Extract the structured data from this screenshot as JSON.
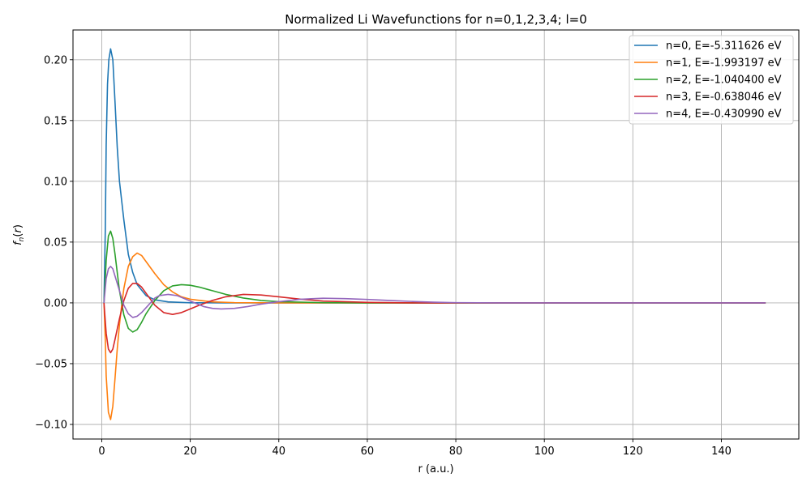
{
  "chart_data": {
    "type": "line",
    "title": "Normalized Li Wavefunctions for n=0,1,2,3,4; l=0",
    "xlabel": "r (a.u.)",
    "ylabel": "f_n(r)",
    "xlim": [
      -6.5,
      157.5
    ],
    "ylim": [
      -0.112,
      0.2245
    ],
    "xticks": [
      0,
      20,
      40,
      60,
      80,
      100,
      120,
      140
    ],
    "xtick_labels": [
      "0",
      "20",
      "40",
      "60",
      "80",
      "100",
      "120",
      "140"
    ],
    "yticks": [
      -0.1,
      -0.05,
      0.0,
      0.05,
      0.1,
      0.15,
      0.2
    ],
    "ytick_labels": [
      "−0.10",
      "−0.05",
      "0.00",
      "0.05",
      "0.10",
      "0.15",
      "0.20"
    ],
    "grid": true,
    "legend_position": "top-right",
    "series": [
      {
        "name": "n=0, E=-5.311626 eV",
        "color": "#1f77b4",
        "points": [
          [
            0.5,
            0.0
          ],
          [
            0.8,
            0.06
          ],
          [
            1.0,
            0.13
          ],
          [
            1.3,
            0.18
          ],
          [
            1.6,
            0.2
          ],
          [
            2.0,
            0.209
          ],
          [
            2.5,
            0.2
          ],
          [
            3.0,
            0.165
          ],
          [
            3.5,
            0.128
          ],
          [
            4.0,
            0.1
          ],
          [
            5.0,
            0.068
          ],
          [
            6.0,
            0.04
          ],
          [
            7.0,
            0.025
          ],
          [
            8.0,
            0.015
          ],
          [
            10.0,
            0.006
          ],
          [
            12.0,
            0.0025
          ],
          [
            15.0,
            0.0008
          ],
          [
            20.0,
            0.0001
          ],
          [
            30.0,
            0.0
          ],
          [
            150.0,
            0.0
          ]
        ]
      },
      {
        "name": "n=1, E=-1.993197 eV",
        "color": "#ff7f0e",
        "points": [
          [
            0.5,
            0.0
          ],
          [
            0.8,
            -0.03
          ],
          [
            1.0,
            -0.06
          ],
          [
            1.5,
            -0.09
          ],
          [
            2.0,
            -0.096
          ],
          [
            2.5,
            -0.085
          ],
          [
            3.0,
            -0.062
          ],
          [
            3.5,
            -0.038
          ],
          [
            4.0,
            -0.018
          ],
          [
            4.5,
            -0.002
          ],
          [
            5.0,
            0.012
          ],
          [
            6.0,
            0.03
          ],
          [
            7.0,
            0.038
          ],
          [
            8.0,
            0.041
          ],
          [
            9.0,
            0.039
          ],
          [
            10.0,
            0.034
          ],
          [
            12.0,
            0.024
          ],
          [
            14.0,
            0.015
          ],
          [
            16.0,
            0.009
          ],
          [
            18.0,
            0.005
          ],
          [
            20.0,
            0.003
          ],
          [
            25.0,
            0.0008
          ],
          [
            30.0,
            0.0002
          ],
          [
            40.0,
            0.0
          ],
          [
            150.0,
            0.0
          ]
        ]
      },
      {
        "name": "n=2, E=-1.040400 eV",
        "color": "#2ca02c",
        "points": [
          [
            0.5,
            0.0
          ],
          [
            0.8,
            0.02
          ],
          [
            1.0,
            0.035
          ],
          [
            1.5,
            0.055
          ],
          [
            2.0,
            0.059
          ],
          [
            2.5,
            0.053
          ],
          [
            3.0,
            0.04
          ],
          [
            3.5,
            0.025
          ],
          [
            4.0,
            0.01
          ],
          [
            5.0,
            -0.01
          ],
          [
            6.0,
            -0.021
          ],
          [
            7.0,
            -0.024
          ],
          [
            8.0,
            -0.022
          ],
          [
            9.0,
            -0.016
          ],
          [
            10.0,
            -0.009
          ],
          [
            12.0,
            0.002
          ],
          [
            14.0,
            0.01
          ],
          [
            16.0,
            0.014
          ],
          [
            18.0,
            0.015
          ],
          [
            20.0,
            0.0145
          ],
          [
            22.0,
            0.013
          ],
          [
            25.0,
            0.01
          ],
          [
            28.0,
            0.007
          ],
          [
            32.0,
            0.004
          ],
          [
            36.0,
            0.002
          ],
          [
            40.0,
            0.001
          ],
          [
            50.0,
            0.0002
          ],
          [
            60.0,
            0.0
          ],
          [
            150.0,
            0.0
          ]
        ]
      },
      {
        "name": "n=3, E=-0.638046 eV",
        "color": "#d62728",
        "points": [
          [
            0.5,
            0.0
          ],
          [
            0.8,
            -0.015
          ],
          [
            1.0,
            -0.025
          ],
          [
            1.5,
            -0.038
          ],
          [
            2.0,
            -0.041
          ],
          [
            2.5,
            -0.038
          ],
          [
            3.0,
            -0.03
          ],
          [
            4.0,
            -0.013
          ],
          [
            5.0,
            0.002
          ],
          [
            6.0,
            0.012
          ],
          [
            7.0,
            0.016
          ],
          [
            8.0,
            0.016
          ],
          [
            9.0,
            0.013
          ],
          [
            10.0,
            0.008
          ],
          [
            11.0,
            0.003
          ],
          [
            12.0,
            -0.002
          ],
          [
            14.0,
            -0.008
          ],
          [
            16.0,
            -0.0095
          ],
          [
            18.0,
            -0.008
          ],
          [
            20.0,
            -0.005
          ],
          [
            22.0,
            -0.002
          ],
          [
            25.0,
            0.002
          ],
          [
            28.0,
            0.005
          ],
          [
            32.0,
            0.007
          ],
          [
            36.0,
            0.0065
          ],
          [
            40.0,
            0.005
          ],
          [
            45.0,
            0.003
          ],
          [
            50.0,
            0.0015
          ],
          [
            60.0,
            0.0004
          ],
          [
            70.0,
            0.0
          ],
          [
            150.0,
            0.0
          ]
        ]
      },
      {
        "name": "n=4, E=-0.430990 eV",
        "color": "#9467bd",
        "points": [
          [
            0.5,
            0.0
          ],
          [
            0.8,
            0.012
          ],
          [
            1.0,
            0.02
          ],
          [
            1.5,
            0.028
          ],
          [
            2.0,
            0.03
          ],
          [
            2.5,
            0.028
          ],
          [
            3.0,
            0.022
          ],
          [
            4.0,
            0.01
          ],
          [
            5.0,
            -0.002
          ],
          [
            6.0,
            -0.009
          ],
          [
            7.0,
            -0.012
          ],
          [
            8.0,
            -0.011
          ],
          [
            9.0,
            -0.008
          ],
          [
            10.0,
            -0.004
          ],
          [
            11.0,
            0.0
          ],
          [
            12.0,
            0.004
          ],
          [
            13.0,
            0.006
          ],
          [
            15.0,
            0.007
          ],
          [
            17.0,
            0.006
          ],
          [
            19.0,
            0.003
          ],
          [
            21.0,
            0.0
          ],
          [
            23.0,
            -0.003
          ],
          [
            25.0,
            -0.0045
          ],
          [
            27.0,
            -0.005
          ],
          [
            30.0,
            -0.0045
          ],
          [
            33.0,
            -0.003
          ],
          [
            36.0,
            -0.001
          ],
          [
            40.0,
            0.001
          ],
          [
            45.0,
            0.003
          ],
          [
            50.0,
            0.0038
          ],
          [
            55.0,
            0.0035
          ],
          [
            60.0,
            0.0028
          ],
          [
            65.0,
            0.002
          ],
          [
            70.0,
            0.0012
          ],
          [
            75.0,
            0.0006
          ],
          [
            80.0,
            0.0002
          ],
          [
            90.0,
            0.0
          ],
          [
            150.0,
            0.0
          ]
        ]
      }
    ]
  }
}
